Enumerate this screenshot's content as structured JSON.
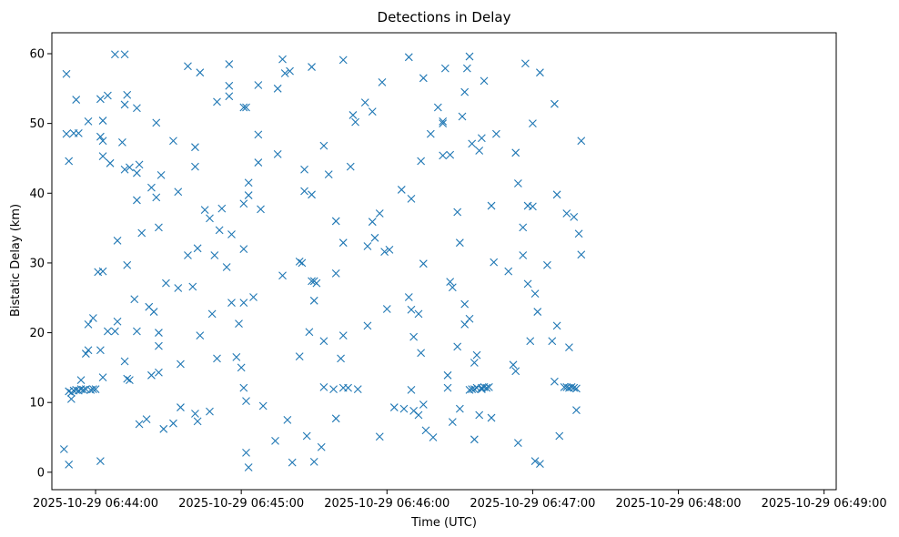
{
  "chart_data": {
    "type": "scatter",
    "title": "Detections in Delay",
    "xlabel": "Time (UTC)",
    "ylabel": "Bistatic Delay (km)",
    "marker": "x",
    "color": "#1f77b4",
    "grid": false,
    "xlim": [
      "2025-10-29 06:43:42",
      "2025-10-29 06:49:05"
    ],
    "ylim": [
      -2.5,
      63
    ],
    "x_ticks": [
      "2025-10-29 06:44:00",
      "2025-10-29 06:45:00",
      "2025-10-29 06:46:00",
      "2025-10-29 06:47:00",
      "2025-10-29 06:48:00",
      "2025-10-29 06:49:00"
    ],
    "y_ticks": [
      0,
      10,
      20,
      30,
      40,
      50,
      60
    ],
    "points": [
      [
        "2025-10-29 06:43:47",
        3.3
      ],
      [
        "2025-10-29 06:43:48",
        57.1
      ],
      [
        "2025-10-29 06:43:48",
        48.5
      ],
      [
        "2025-10-29 06:43:49",
        44.6
      ],
      [
        "2025-10-29 06:43:49",
        1.1
      ],
      [
        "2025-10-29 06:43:49",
        11.6
      ],
      [
        "2025-10-29 06:43:50",
        10.5
      ],
      [
        "2025-10-29 06:43:50",
        11.4
      ],
      [
        "2025-10-29 06:43:51",
        48.6
      ],
      [
        "2025-10-29 06:43:51",
        11.7
      ],
      [
        "2025-10-29 06:43:52",
        53.4
      ],
      [
        "2025-10-29 06:43:52",
        11.8
      ],
      [
        "2025-10-29 06:43:53",
        48.6
      ],
      [
        "2025-10-29 06:43:53",
        11.7
      ],
      [
        "2025-10-29 06:43:54",
        13.2
      ],
      [
        "2025-10-29 06:43:54",
        11.9
      ],
      [
        "2025-10-29 06:43:55",
        11.8
      ],
      [
        "2025-10-29 06:43:56",
        11.9
      ],
      [
        "2025-10-29 06:43:56",
        17.0
      ],
      [
        "2025-10-29 06:43:57",
        50.3
      ],
      [
        "2025-10-29 06:43:57",
        17.5
      ],
      [
        "2025-10-29 06:43:57",
        21.2
      ],
      [
        "2025-10-29 06:43:58",
        11.8
      ],
      [
        "2025-10-29 06:43:59",
        11.9
      ],
      [
        "2025-10-29 06:43:59",
        22.1
      ],
      [
        "2025-10-29 06:44:00",
        11.9
      ],
      [
        "2025-10-29 06:44:01",
        28.7
      ],
      [
        "2025-10-29 06:44:02",
        1.6
      ],
      [
        "2025-10-29 06:44:02",
        17.5
      ],
      [
        "2025-10-29 06:44:02",
        53.5
      ],
      [
        "2025-10-29 06:44:02",
        48.1
      ],
      [
        "2025-10-29 06:44:03",
        50.4
      ],
      [
        "2025-10-29 06:44:03",
        47.5
      ],
      [
        "2025-10-29 06:44:03",
        45.3
      ],
      [
        "2025-10-29 06:44:03",
        28.8
      ],
      [
        "2025-10-29 06:44:03",
        13.6
      ],
      [
        "2025-10-29 06:44:05",
        54.0
      ],
      [
        "2025-10-29 06:44:05",
        20.2
      ],
      [
        "2025-10-29 06:44:06",
        44.3
      ],
      [
        "2025-10-29 06:44:08",
        59.9
      ],
      [
        "2025-10-29 06:44:08",
        20.2
      ],
      [
        "2025-10-29 06:44:09",
        33.2
      ],
      [
        "2025-10-29 06:44:09",
        21.6
      ],
      [
        "2025-10-29 06:44:11",
        47.3
      ],
      [
        "2025-10-29 06:44:12",
        59.9
      ],
      [
        "2025-10-29 06:44:12",
        52.7
      ],
      [
        "2025-10-29 06:44:12",
        43.4
      ],
      [
        "2025-10-29 06:44:12",
        15.9
      ],
      [
        "2025-10-29 06:44:13",
        54.1
      ],
      [
        "2025-10-29 06:44:13",
        29.7
      ],
      [
        "2025-10-29 06:44:13",
        13.4
      ],
      [
        "2025-10-29 06:44:14",
        43.7
      ],
      [
        "2025-10-29 06:44:14",
        13.2
      ],
      [
        "2025-10-29 06:44:16",
        24.8
      ],
      [
        "2025-10-29 06:44:17",
        52.2
      ],
      [
        "2025-10-29 06:44:17",
        42.9
      ],
      [
        "2025-10-29 06:44:17",
        39.0
      ],
      [
        "2025-10-29 06:44:17",
        20.2
      ],
      [
        "2025-10-29 06:44:18",
        44.1
      ],
      [
        "2025-10-29 06:44:18",
        6.9
      ],
      [
        "2025-10-29 06:44:19",
        34.3
      ],
      [
        "2025-10-29 06:44:21",
        7.6
      ],
      [
        "2025-10-29 06:44:22",
        23.7
      ],
      [
        "2025-10-29 06:44:23",
        40.8
      ],
      [
        "2025-10-29 06:44:23",
        13.9
      ],
      [
        "2025-10-29 06:44:24",
        23.0
      ],
      [
        "2025-10-29 06:44:25",
        50.1
      ],
      [
        "2025-10-29 06:44:25",
        39.4
      ],
      [
        "2025-10-29 06:44:26",
        35.1
      ],
      [
        "2025-10-29 06:44:26",
        20.0
      ],
      [
        "2025-10-29 06:44:26",
        18.1
      ],
      [
        "2025-10-29 06:44:26",
        14.3
      ],
      [
        "2025-10-29 06:44:27",
        42.6
      ],
      [
        "2025-10-29 06:44:28",
        6.2
      ],
      [
        "2025-10-29 06:44:29",
        27.1
      ],
      [
        "2025-10-29 06:44:32",
        47.5
      ],
      [
        "2025-10-29 06:44:32",
        7.0
      ],
      [
        "2025-10-29 06:44:34",
        40.2
      ],
      [
        "2025-10-29 06:44:34",
        26.4
      ],
      [
        "2025-10-29 06:44:35",
        15.5
      ],
      [
        "2025-10-29 06:44:35",
        9.3
      ],
      [
        "2025-10-29 06:44:38",
        58.2
      ],
      [
        "2025-10-29 06:44:38",
        31.1
      ],
      [
        "2025-10-29 06:44:40",
        26.6
      ],
      [
        "2025-10-29 06:44:41",
        46.6
      ],
      [
        "2025-10-29 06:44:41",
        43.8
      ],
      [
        "2025-10-29 06:44:41",
        8.4
      ],
      [
        "2025-10-29 06:44:42",
        32.1
      ],
      [
        "2025-10-29 06:44:42",
        7.3
      ],
      [
        "2025-10-29 06:44:43",
        57.3
      ],
      [
        "2025-10-29 06:44:43",
        19.6
      ],
      [
        "2025-10-29 06:44:45",
        37.6
      ],
      [
        "2025-10-29 06:44:47",
        36.4
      ],
      [
        "2025-10-29 06:44:47",
        8.7
      ],
      [
        "2025-10-29 06:44:48",
        22.7
      ],
      [
        "2025-10-29 06:44:49",
        31.1
      ],
      [
        "2025-10-29 06:44:50",
        16.3
      ],
      [
        "2025-10-29 06:44:50",
        53.1
      ],
      [
        "2025-10-29 06:44:51",
        34.7
      ],
      [
        "2025-10-29 06:44:52",
        37.8
      ],
      [
        "2025-10-29 06:44:54",
        29.4
      ],
      [
        "2025-10-29 06:44:55",
        58.5
      ],
      [
        "2025-10-29 06:44:55",
        55.4
      ],
      [
        "2025-10-29 06:44:55",
        53.9
      ],
      [
        "2025-10-29 06:44:56",
        24.3
      ],
      [
        "2025-10-29 06:44:56",
        34.1
      ],
      [
        "2025-10-29 06:44:58",
        16.5
      ],
      [
        "2025-10-29 06:44:59",
        21.3
      ],
      [
        "2025-10-29 06:45:00",
        15.0
      ],
      [
        "2025-10-29 06:45:01",
        24.3
      ],
      [
        "2025-10-29 06:45:01",
        12.1
      ],
      [
        "2025-10-29 06:45:01",
        32.0
      ],
      [
        "2025-10-29 06:45:01",
        38.5
      ],
      [
        "2025-10-29 06:45:01",
        52.3
      ],
      [
        "2025-10-29 06:45:02",
        52.3
      ],
      [
        "2025-10-29 06:45:02",
        2.8
      ],
      [
        "2025-10-29 06:45:02",
        10.2
      ],
      [
        "2025-10-29 06:45:03",
        39.7
      ],
      [
        "2025-10-29 06:45:03",
        41.5
      ],
      [
        "2025-10-29 06:45:03",
        0.7
      ],
      [
        "2025-10-29 06:45:05",
        25.1
      ],
      [
        "2025-10-29 06:45:07",
        44.4
      ],
      [
        "2025-10-29 06:45:07",
        55.5
      ],
      [
        "2025-10-29 06:45:07",
        48.4
      ],
      [
        "2025-10-29 06:45:08",
        37.7
      ],
      [
        "2025-10-29 06:45:09",
        9.5
      ],
      [
        "2025-10-29 06:45:14",
        4.5
      ],
      [
        "2025-10-29 06:45:15",
        45.6
      ],
      [
        "2025-10-29 06:45:15",
        55.0
      ],
      [
        "2025-10-29 06:45:17",
        59.2
      ],
      [
        "2025-10-29 06:45:17",
        28.2
      ],
      [
        "2025-10-29 06:45:18",
        57.2
      ],
      [
        "2025-10-29 06:45:19",
        7.5
      ],
      [
        "2025-10-29 06:45:20",
        57.5
      ],
      [
        "2025-10-29 06:45:21",
        1.4
      ],
      [
        "2025-10-29 06:45:24",
        16.6
      ],
      [
        "2025-10-29 06:45:24",
        30.2
      ],
      [
        "2025-10-29 06:45:25",
        30.0
      ],
      [
        "2025-10-29 06:45:26",
        43.4
      ],
      [
        "2025-10-29 06:45:26",
        40.3
      ],
      [
        "2025-10-29 06:45:27",
        5.2
      ],
      [
        "2025-10-29 06:45:28",
        20.1
      ],
      [
        "2025-10-29 06:45:29",
        39.8
      ],
      [
        "2025-10-29 06:45:29",
        58.1
      ],
      [
        "2025-10-29 06:45:29",
        27.4
      ],
      [
        "2025-10-29 06:45:30",
        24.6
      ],
      [
        "2025-10-29 06:45:30",
        27.4
      ],
      [
        "2025-10-29 06:45:30",
        1.5
      ],
      [
        "2025-10-29 06:45:31",
        27.1
      ],
      [
        "2025-10-29 06:45:33",
        3.6
      ],
      [
        "2025-10-29 06:45:34",
        46.8
      ],
      [
        "2025-10-29 06:45:34",
        18.8
      ],
      [
        "2025-10-29 06:45:34",
        12.2
      ],
      [
        "2025-10-29 06:45:36",
        42.7
      ],
      [
        "2025-10-29 06:45:38",
        11.9
      ],
      [
        "2025-10-29 06:45:39",
        36.0
      ],
      [
        "2025-10-29 06:45:39",
        28.5
      ],
      [
        "2025-10-29 06:45:39",
        7.7
      ],
      [
        "2025-10-29 06:45:41",
        16.3
      ],
      [
        "2025-10-29 06:45:42",
        19.6
      ],
      [
        "2025-10-29 06:45:42",
        32.9
      ],
      [
        "2025-10-29 06:45:42",
        59.1
      ],
      [
        "2025-10-29 06:45:42",
        12.1
      ],
      [
        "2025-10-29 06:45:44",
        12.1
      ],
      [
        "2025-10-29 06:45:45",
        43.8
      ],
      [
        "2025-10-29 06:45:46",
        51.2
      ],
      [
        "2025-10-29 06:45:47",
        50.2
      ],
      [
        "2025-10-29 06:45:48",
        11.9
      ],
      [
        "2025-10-29 06:45:51",
        53.0
      ],
      [
        "2025-10-29 06:45:52",
        21.0
      ],
      [
        "2025-10-29 06:45:52",
        32.4
      ],
      [
        "2025-10-29 06:45:54",
        51.7
      ],
      [
        "2025-10-29 06:45:54",
        35.9
      ],
      [
        "2025-10-29 06:45:55",
        33.6
      ],
      [
        "2025-10-29 06:45:57",
        37.1
      ],
      [
        "2025-10-29 06:45:57",
        5.1
      ],
      [
        "2025-10-29 06:45:58",
        55.9
      ],
      [
        "2025-10-29 06:45:59",
        31.6
      ],
      [
        "2025-10-29 06:46:00",
        23.4
      ],
      [
        "2025-10-29 06:46:01",
        31.9
      ],
      [
        "2025-10-29 06:46:03",
        9.3
      ],
      [
        "2025-10-29 06:46:06",
        40.5
      ],
      [
        "2025-10-29 06:46:07",
        9.1
      ],
      [
        "2025-10-29 06:46:09",
        59.5
      ],
      [
        "2025-10-29 06:46:09",
        25.1
      ],
      [
        "2025-10-29 06:46:10",
        23.3
      ],
      [
        "2025-10-29 06:46:10",
        11.8
      ],
      [
        "2025-10-29 06:46:10",
        39.2
      ],
      [
        "2025-10-29 06:46:11",
        19.4
      ],
      [
        "2025-10-29 06:46:11",
        8.8
      ],
      [
        "2025-10-29 06:46:13",
        22.7
      ],
      [
        "2025-10-29 06:46:13",
        8.2
      ],
      [
        "2025-10-29 06:46:14",
        44.6
      ],
      [
        "2025-10-29 06:46:14",
        17.1
      ],
      [
        "2025-10-29 06:46:15",
        56.5
      ],
      [
        "2025-10-29 06:46:15",
        29.9
      ],
      [
        "2025-10-29 06:46:15",
        9.7
      ],
      [
        "2025-10-29 06:46:16",
        6.0
      ],
      [
        "2025-10-29 06:46:18",
        48.5
      ],
      [
        "2025-10-29 06:46:19",
        5.0
      ],
      [
        "2025-10-29 06:46:21",
        52.3
      ],
      [
        "2025-10-29 06:46:23",
        50.0
      ],
      [
        "2025-10-29 06:46:23",
        50.3
      ],
      [
        "2025-10-29 06:46:23",
        45.4
      ],
      [
        "2025-10-29 06:46:24",
        57.9
      ],
      [
        "2025-10-29 06:46:25",
        13.9
      ],
      [
        "2025-10-29 06:46:25",
        12.1
      ],
      [
        "2025-10-29 06:46:26",
        45.5
      ],
      [
        "2025-10-29 06:46:26",
        27.3
      ],
      [
        "2025-10-29 06:46:27",
        26.5
      ],
      [
        "2025-10-29 06:46:27",
        7.2
      ],
      [
        "2025-10-29 06:46:29",
        18.0
      ],
      [
        "2025-10-29 06:46:29",
        37.3
      ],
      [
        "2025-10-29 06:46:30",
        32.9
      ],
      [
        "2025-10-29 06:46:30",
        9.1
      ],
      [
        "2025-10-29 06:46:31",
        51.0
      ],
      [
        "2025-10-29 06:46:32",
        54.5
      ],
      [
        "2025-10-29 06:46:32",
        24.1
      ],
      [
        "2025-10-29 06:46:32",
        21.2
      ],
      [
        "2025-10-29 06:46:33",
        57.9
      ],
      [
        "2025-10-29 06:46:34",
        59.6
      ],
      [
        "2025-10-29 06:46:34",
        22.0
      ],
      [
        "2025-10-29 06:46:34",
        11.8
      ],
      [
        "2025-10-29 06:46:35",
        11.9
      ],
      [
        "2025-10-29 06:46:35",
        47.1
      ],
      [
        "2025-10-29 06:46:36",
        4.7
      ],
      [
        "2025-10-29 06:46:36",
        15.7
      ],
      [
        "2025-10-29 06:46:36",
        11.9
      ],
      [
        "2025-10-29 06:46:37",
        16.8
      ],
      [
        "2025-10-29 06:46:37",
        12.1
      ],
      [
        "2025-10-29 06:46:38",
        8.2
      ],
      [
        "2025-10-29 06:46:38",
        46.1
      ],
      [
        "2025-10-29 06:46:39",
        47.9
      ],
      [
        "2025-10-29 06:46:39",
        11.9
      ],
      [
        "2025-10-29 06:46:39",
        12.1
      ],
      [
        "2025-10-29 06:46:40",
        56.1
      ],
      [
        "2025-10-29 06:46:40",
        12.2
      ],
      [
        "2025-10-29 06:46:41",
        12.1
      ],
      [
        "2025-10-29 06:46:42",
        12.2
      ],
      [
        "2025-10-29 06:46:43",
        38.2
      ],
      [
        "2025-10-29 06:46:43",
        7.8
      ],
      [
        "2025-10-29 06:46:44",
        30.1
      ],
      [
        "2025-10-29 06:46:45",
        48.5
      ],
      [
        "2025-10-29 06:46:50",
        28.8
      ],
      [
        "2025-10-29 06:46:52",
        15.4
      ],
      [
        "2025-10-29 06:46:53",
        45.8
      ],
      [
        "2025-10-29 06:46:53",
        14.5
      ],
      [
        "2025-10-29 06:46:54",
        41.4
      ],
      [
        "2025-10-29 06:46:54",
        4.2
      ],
      [
        "2025-10-29 06:46:56",
        31.1
      ],
      [
        "2025-10-29 06:46:56",
        35.1
      ],
      [
        "2025-10-29 06:46:57",
        58.6
      ],
      [
        "2025-10-29 06:46:58",
        38.2
      ],
      [
        "2025-10-29 06:46:58",
        27.0
      ],
      [
        "2025-10-29 06:46:59",
        18.8
      ],
      [
        "2025-10-29 06:47:00",
        38.1
      ],
      [
        "2025-10-29 06:47:00",
        50.0
      ],
      [
        "2025-10-29 06:47:01",
        1.6
      ],
      [
        "2025-10-29 06:47:01",
        25.6
      ],
      [
        "2025-10-29 06:47:02",
        23.0
      ],
      [
        "2025-10-29 06:47:03",
        57.3
      ],
      [
        "2025-10-29 06:47:03",
        1.2
      ],
      [
        "2025-10-29 06:47:06",
        29.7
      ],
      [
        "2025-10-29 06:47:08",
        18.8
      ],
      [
        "2025-10-29 06:47:09",
        52.8
      ],
      [
        "2025-10-29 06:47:09",
        13.0
      ],
      [
        "2025-10-29 06:47:10",
        39.8
      ],
      [
        "2025-10-29 06:47:10",
        21.0
      ],
      [
        "2025-10-29 06:47:11",
        5.2
      ],
      [
        "2025-10-29 06:47:13",
        12.2
      ],
      [
        "2025-10-29 06:47:14",
        12.2
      ],
      [
        "2025-10-29 06:47:14",
        37.1
      ],
      [
        "2025-10-29 06:47:15",
        17.9
      ],
      [
        "2025-10-29 06:47:15",
        12.1
      ],
      [
        "2025-10-29 06:47:16",
        12.2
      ],
      [
        "2025-10-29 06:47:17",
        12.1
      ],
      [
        "2025-10-29 06:47:17",
        36.6
      ],
      [
        "2025-10-29 06:47:18",
        12.0
      ],
      [
        "2025-10-29 06:47:18",
        8.9
      ],
      [
        "2025-10-29 06:47:19",
        34.2
      ],
      [
        "2025-10-29 06:47:20",
        31.2
      ],
      [
        "2025-10-29 06:47:20",
        47.5
      ]
    ]
  }
}
